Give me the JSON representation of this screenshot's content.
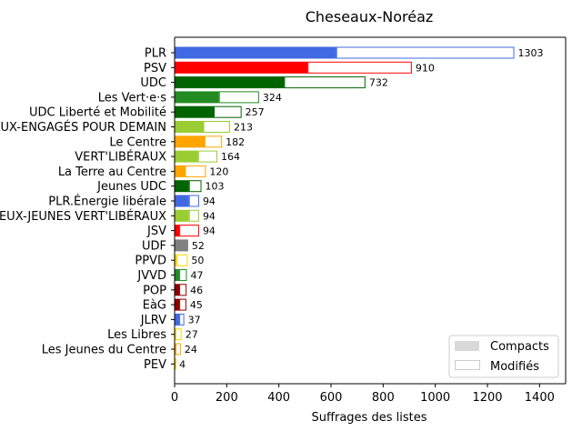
{
  "chart_data": {
    "type": "bar",
    "orientation": "horizontal",
    "stacked": true,
    "title": "Cheseaux-Noréaz",
    "xlabel": "Suffrages des listes",
    "ylabel": "",
    "xlim": [
      0,
      1500
    ],
    "xticks": [
      0,
      200,
      400,
      600,
      800,
      1000,
      1200,
      1400
    ],
    "grid": false,
    "legend_position": "bottom-right",
    "categories": [
      "PLR",
      "PSV",
      "UDC",
      "Les Vert·e·s",
      "UDC Liberté et Mobilité",
      "LES VERT'LIBÉRAUX-ENGAGÉS POUR DEMAIN",
      "Le Centre",
      "VERT'LIBÉRAUX",
      "La Terre au Centre",
      "Jeunes UDC",
      "PLR.Énergie libérale",
      "LES JEUX-JEUNES VERT'LIBÉRAUX",
      "JSV",
      "UDF",
      "PPVD",
      "JVVD",
      "POP",
      "EàG",
      "JLRV",
      "Les Libres",
      "Les Jeunes du Centre",
      "PEV"
    ],
    "colors": [
      "#4169e1",
      "#ff0000",
      "#006400",
      "#228b22",
      "#006400",
      "#9acd32",
      "#ffa500",
      "#9acd32",
      "#ffa500",
      "#006400",
      "#4169e1",
      "#9acd32",
      "#ff0000",
      "#808080",
      "#ffd700",
      "#228b22",
      "#8b0000",
      "#8b0000",
      "#4169e1",
      "#ffd700",
      "#ffa500",
      "#ffd700"
    ],
    "series": [
      {
        "name": "Compacts",
        "style": "filled",
        "values": [
          620,
          510,
          420,
          170,
          150,
          110,
          115,
          90,
          40,
          55,
          55,
          55,
          18,
          52,
          8,
          18,
          18,
          18,
          18,
          3,
          4,
          1
        ]
      },
      {
        "name": "Modifiés",
        "style": "outline",
        "values": [
          683,
          400,
          312,
          154,
          107,
          103,
          67,
          74,
          80,
          48,
          39,
          39,
          76,
          0,
          42,
          29,
          28,
          27,
          19,
          24,
          20,
          3
        ]
      }
    ],
    "totals": [
      1303,
      910,
      732,
      324,
      257,
      213,
      182,
      164,
      120,
      103,
      94,
      94,
      94,
      52,
      50,
      47,
      46,
      45,
      37,
      27,
      24,
      4
    ],
    "legend": {
      "compacts_color": "#d9d9d9",
      "modifies_color": "#ffffff",
      "border_color": "#cccccc"
    }
  }
}
